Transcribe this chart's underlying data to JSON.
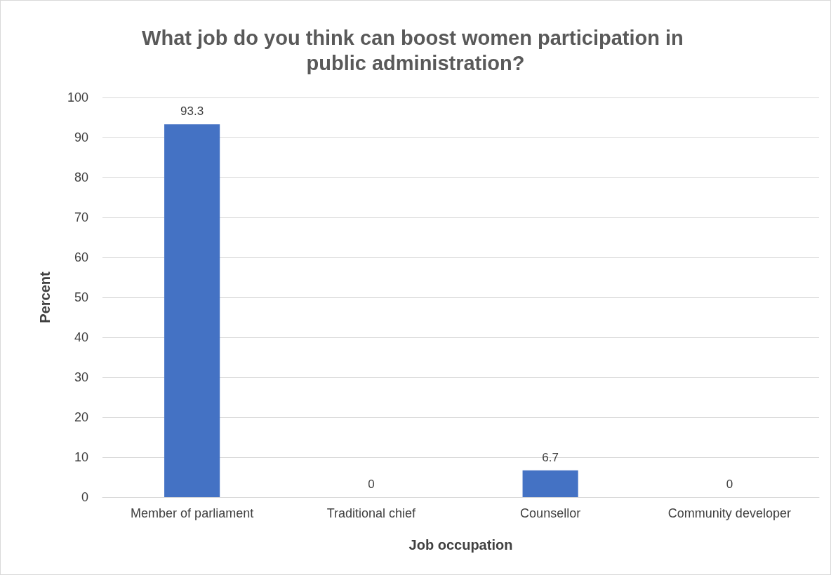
{
  "chart_data": {
    "type": "bar",
    "title": "What job do you think can boost women participation in public administration?",
    "xlabel": "Job occupation",
    "ylabel": "Percent",
    "categories": [
      "Member of parliament",
      "Traditional chief",
      "Counsellor",
      "Community developer"
    ],
    "values": [
      93.3,
      0,
      6.7,
      0
    ],
    "color": "#4472c4",
    "ylim": [
      0,
      100
    ],
    "yticks": [
      0,
      10,
      20,
      30,
      40,
      50,
      60,
      70,
      80,
      90,
      100
    ],
    "grid": "y",
    "data_labels": true
  }
}
